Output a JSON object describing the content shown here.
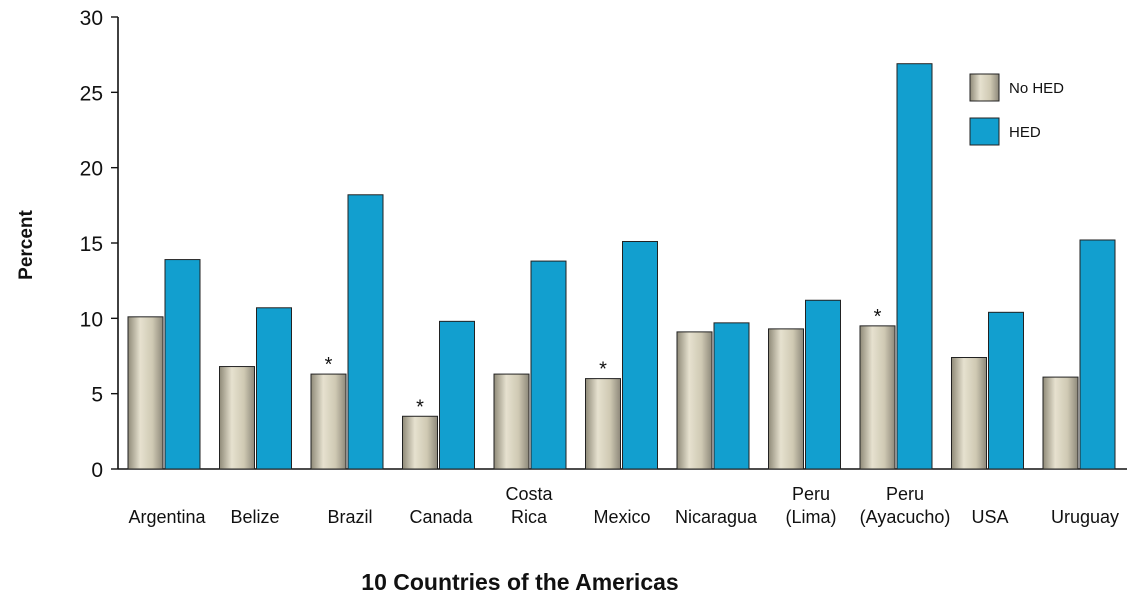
{
  "chart_data": {
    "type": "bar",
    "xlabel": "10 Countries of the Americas",
    "ylabel": "Percent",
    "ylim": [
      0,
      30
    ],
    "yticks": [
      0,
      5,
      10,
      15,
      20,
      25,
      30
    ],
    "categories": [
      [
        "Argentina"
      ],
      [
        "Belize"
      ],
      [
        "Brazil"
      ],
      [
        "Canada"
      ],
      [
        "Costa",
        "Rica"
      ],
      [
        "Mexico"
      ],
      [
        "Nicaragua"
      ],
      [
        "Peru",
        "(Lima)"
      ],
      [
        "Peru",
        "(Ayacucho)"
      ],
      [
        "USA"
      ],
      [
        "Uruguay"
      ]
    ],
    "series": [
      {
        "name": "No HED",
        "values": [
          10.1,
          6.8,
          6.3,
          3.5,
          6.3,
          6.0,
          9.1,
          9.3,
          9.5,
          7.4,
          6.1
        ]
      },
      {
        "name": "HED",
        "values": [
          13.9,
          10.7,
          18.2,
          9.8,
          13.8,
          15.1,
          9.7,
          11.2,
          26.9,
          10.4,
          15.2
        ]
      }
    ],
    "annotations": [
      {
        "category_index": 2,
        "series_index": 0,
        "text": "*"
      },
      {
        "category_index": 3,
        "series_index": 0,
        "text": "*"
      },
      {
        "category_index": 5,
        "series_index": 0,
        "text": "*"
      },
      {
        "category_index": 8,
        "series_index": 0,
        "text": "*"
      }
    ],
    "legend_position": "top-right",
    "grid": false,
    "colors": {
      "No HED": "#c9c3ad",
      "HED": "#129fcf"
    }
  }
}
